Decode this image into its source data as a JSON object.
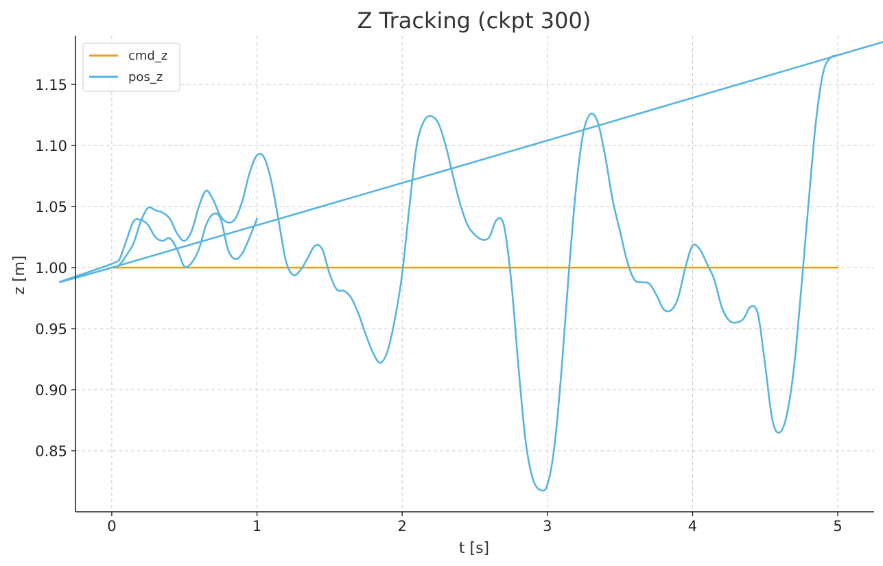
{
  "chart_data": {
    "type": "line",
    "title": "Z Tracking (ckpt 300)",
    "xlabel": "t [s]",
    "ylabel": "z [m]",
    "xlim": [
      -0.25,
      5.25
    ],
    "ylim": [
      0.8,
      1.19
    ],
    "xticks": [
      0,
      1,
      2,
      3,
      4,
      5
    ],
    "xtick_labels": [
      "0",
      "1",
      "2",
      "3",
      "4",
      "5"
    ],
    "yticks": [
      0.85,
      0.9,
      0.95,
      1.0,
      1.05,
      1.1,
      1.15
    ],
    "ytick_labels": [
      "0.85",
      "0.90",
      "0.95",
      "1.00",
      "1.05",
      "1.10",
      "1.15"
    ],
    "grid": true,
    "legend_position": "top-left",
    "series": [
      {
        "name": "cmd_z",
        "color": "#E5A31A",
        "x": [
          0,
          5
        ],
        "y": [
          1.0,
          1.0
        ]
      },
      {
        "name": "pos_z",
        "color": "#56B4E2",
        "x": [
          0.0,
          0.05,
          0.1,
          0.15,
          0.2,
          0.25,
          0.3,
          0.35,
          0.4,
          0.45,
          0.5,
          0.55,
          0.6,
          0.65,
          0.7,
          0.75,
          0.8,
          0.85,
          0.9,
          0.95,
          1.0,
          1.05,
          1.1,
          1.15,
          1.2,
          1.25,
          1.3,
          1.35,
          1.4,
          1.45,
          1.5,
          1.55,
          1.6,
          1.65,
          1.7,
          1.75,
          1.8,
          1.85,
          1.9,
          1.95,
          2.0,
          2.05,
          2.1,
          2.15,
          2.2,
          2.25,
          2.3,
          2.35,
          2.4,
          2.45,
          2.5,
          2.55,
          2.6,
          2.65,
          2.7,
          2.75,
          2.8,
          2.85,
          2.9,
          2.95,
          3.0,
          3.05,
          3.1,
          3.15,
          3.2,
          3.25,
          3.3,
          3.35,
          3.4,
          3.45,
          3.5,
          3.55,
          3.6,
          3.65,
          3.7,
          3.75,
          3.8,
          3.85,
          3.9,
          3.95,
          4.0,
          4.05,
          4.1,
          4.15,
          4.2,
          4.25,
          4.3,
          4.35,
          4.4,
          4.45,
          4.5,
          4.55,
          4.6,
          4.65,
          4.7,
          4.75,
          4.8,
          4.85,
          4.9,
          4.95,
          5.0,
          5.0,
          0.0,
          0.05,
          0.1,
          0.15,
          0.2,
          0.25,
          0.3,
          0.35,
          0.4,
          0.45,
          0.5,
          0.55,
          0.6,
          0.65,
          0.7,
          0.75,
          0.8,
          0.85,
          0.9,
          0.95,
          1.0
        ],
        "y": [
          1.0,
          1.002,
          1.01,
          1.02,
          1.038,
          1.049,
          1.047,
          1.045,
          1.04,
          1.028,
          1.022,
          1.03,
          1.05,
          1.063,
          1.055,
          1.042,
          1.037,
          1.04,
          1.055,
          1.078,
          1.092,
          1.09,
          1.07,
          1.038,
          1.005,
          0.994,
          0.998,
          1.008,
          1.018,
          1.015,
          0.995,
          0.982,
          0.981,
          0.975,
          0.962,
          0.945,
          0.93,
          0.922,
          0.932,
          0.958,
          0.995,
          1.05,
          1.1,
          1.12,
          1.124,
          1.118,
          1.1,
          1.075,
          1.052,
          1.035,
          1.027,
          1.023,
          1.025,
          1.039,
          1.035,
          0.99,
          0.92,
          0.858,
          0.827,
          0.818,
          0.822,
          0.855,
          0.92,
          1.0,
          1.068,
          1.112,
          1.126,
          1.118,
          1.09,
          1.055,
          1.03,
          1.005,
          0.99,
          0.988,
          0.987,
          0.978,
          0.966,
          0.965,
          0.975,
          1.0,
          1.018,
          1.015,
          1.003,
          0.99,
          0.968,
          0.957,
          0.955,
          0.958,
          0.968,
          0.962,
          0.92,
          0.875,
          0.865,
          0.88,
          0.92,
          0.985,
          1.055,
          1.12,
          1.16,
          1.172,
          1.174,
          1.174,
          1.0,
          1.006,
          1.022,
          1.038,
          1.039,
          1.035,
          1.025,
          1.022,
          1.024,
          1.015,
          1.001,
          1.004,
          1.015,
          1.035,
          1.044,
          1.04,
          1.015,
          1.007,
          1.012,
          1.025,
          1.04
        ]
      }
    ]
  }
}
